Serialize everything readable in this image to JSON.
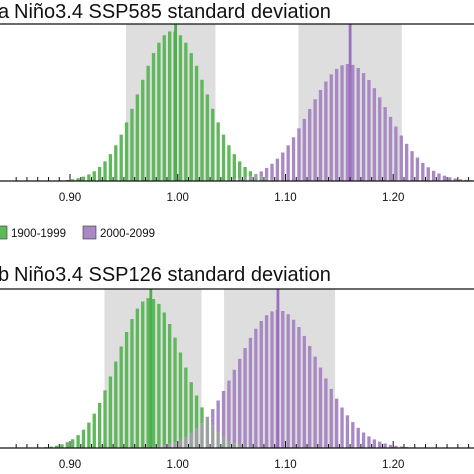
{
  "colors": {
    "green": "#5fb85b",
    "purple": "#a889c3",
    "overlap": "#9aa1a0",
    "band": "#dedede",
    "median_green": "#4caf4f",
    "median_purple": "#9b6fc0",
    "axis": "#111111"
  },
  "legend": {
    "items": [
      {
        "label": "1900-1999",
        "color": "#5fb85b"
      },
      {
        "label": "2000-2099",
        "color": "#a889c3"
      }
    ]
  },
  "chart_data": [
    {
      "type": "bar",
      "panel_label": "a",
      "title": "Niño3.4 SSP585 standard deviation",
      "xlabel": "",
      "ylabel": "",
      "xlim": [
        0.835,
        1.275
      ],
      "x_ticks": [
        0.9,
        1.0,
        1.1,
        1.2
      ],
      "x_tick_labels": [
        "0.90",
        "1.00",
        "1.10",
        "1.20"
      ],
      "bin_width": 0.005,
      "series": [
        {
          "name": "1900-1999",
          "center": 0.995,
          "spread": 0.031,
          "peak": 1.0,
          "median": 0.998,
          "band": [
            0.952,
            1.035
          ]
        },
        {
          "name": "2000-2099",
          "center": 1.158,
          "spread": 0.036,
          "peak": 0.78,
          "median": 1.16,
          "band": [
            1.112,
            1.208
          ]
        }
      ]
    },
    {
      "type": "bar",
      "panel_label": "b",
      "title": "Niño3.4 SSP126 standard deviation",
      "xlabel": "",
      "ylabel": "",
      "xlim": [
        0.835,
        1.275
      ],
      "x_ticks": [
        0.9,
        1.0,
        1.1,
        1.2
      ],
      "x_tick_labels": [
        "0.90",
        "1.00",
        "1.10",
        "1.20"
      ],
      "bin_width": 0.005,
      "series": [
        {
          "name": "1900-1999",
          "center": 0.974,
          "spread": 0.03,
          "peak": 1.0,
          "median": 0.975,
          "band": [
            0.932,
            1.022
          ]
        },
        {
          "name": "2000-2099",
          "center": 1.093,
          "spread": 0.038,
          "peak": 0.92,
          "median": 1.093,
          "band": [
            1.043,
            1.146
          ]
        }
      ]
    }
  ]
}
